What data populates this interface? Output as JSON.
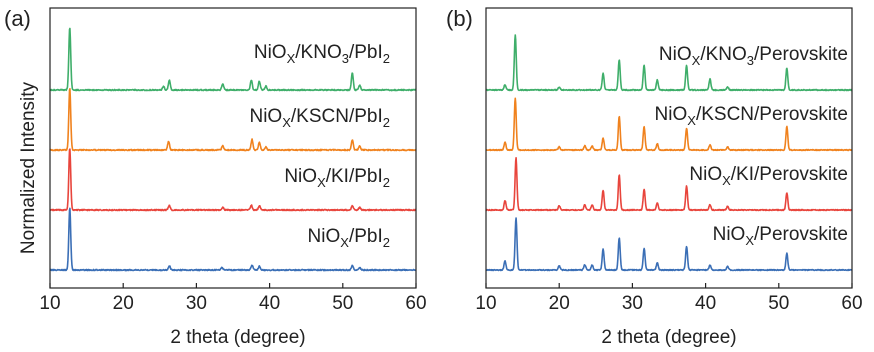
{
  "chart_data": [
    {
      "panel_label": "(a)",
      "type": "line",
      "xlabel": "2 theta (degree)",
      "ylabel": "Normalized Intensity",
      "xlim": [
        10,
        60
      ],
      "xticks": [
        "10",
        "20",
        "30",
        "40",
        "50",
        "60"
      ],
      "yticks": "none",
      "grid": false,
      "series": [
        {
          "label_parts": [
            "NiO",
            "X",
            "/PbI",
            "2"
          ],
          "color": "#3b6fb6",
          "peaks": [
            [
              12.7,
              1.0
            ],
            [
              26.3,
              0.07
            ],
            [
              33.5,
              0.04
            ],
            [
              37.6,
              0.08
            ],
            [
              38.6,
              0.06
            ],
            [
              51.3,
              0.07
            ],
            [
              52.3,
              0.04
            ]
          ]
        },
        {
          "label_parts": [
            "NiO",
            "X",
            "/KI/PbI",
            "2"
          ],
          "color": "#e8453c",
          "peaks": [
            [
              12.7,
              1.0
            ],
            [
              26.3,
              0.07
            ],
            [
              33.6,
              0.04
            ],
            [
              37.5,
              0.08
            ],
            [
              38.6,
              0.07
            ],
            [
              51.3,
              0.07
            ],
            [
              52.3,
              0.04
            ]
          ]
        },
        {
          "label_parts": [
            "NiO",
            "X",
            "/KSCN/PbI",
            "2"
          ],
          "color": "#f0821e",
          "peaks": [
            [
              12.7,
              1.0
            ],
            [
              26.2,
              0.14
            ],
            [
              33.6,
              0.07
            ],
            [
              37.6,
              0.17
            ],
            [
              38.6,
              0.12
            ],
            [
              39.5,
              0.05
            ],
            [
              51.3,
              0.16
            ],
            [
              52.3,
              0.06
            ]
          ]
        },
        {
          "label_parts": [
            "NiO",
            "X",
            "/KNO",
            "3",
            "/PbI",
            "2"
          ],
          "color": "#3fae6a",
          "peaks": [
            [
              12.7,
              1.0
            ],
            [
              25.5,
              0.06
            ],
            [
              26.3,
              0.16
            ],
            [
              33.6,
              0.1
            ],
            [
              37.5,
              0.16
            ],
            [
              38.6,
              0.14
            ],
            [
              39.5,
              0.06
            ],
            [
              51.3,
              0.28
            ],
            [
              52.3,
              0.08
            ]
          ]
        }
      ]
    },
    {
      "panel_label": "(b)",
      "type": "line",
      "xlabel": "2 theta (degree)",
      "ylabel": "",
      "xlim": [
        10,
        60
      ],
      "xticks": [
        "10",
        "20",
        "30",
        "40",
        "50",
        "60"
      ],
      "yticks": "none",
      "grid": false,
      "series": [
        {
          "label_parts": [
            "NiO",
            "X",
            "/Perovskite"
          ],
          "color": "#3b6fb6",
          "peaks": [
            [
              12.6,
              0.17
            ],
            [
              14.1,
              1.0
            ],
            [
              20.0,
              0.08
            ],
            [
              23.5,
              0.1
            ],
            [
              24.5,
              0.1
            ],
            [
              26.0,
              0.4
            ],
            [
              28.2,
              0.62
            ],
            [
              31.6,
              0.42
            ],
            [
              33.4,
              0.14
            ],
            [
              37.4,
              0.45
            ],
            [
              40.6,
              0.09
            ],
            [
              43.0,
              0.07
            ],
            [
              51.1,
              0.32
            ]
          ]
        },
        {
          "label_parts": [
            "NiO",
            "X",
            "/KI/Perovskite"
          ],
          "color": "#e8453c",
          "peaks": [
            [
              12.6,
              0.18
            ],
            [
              14.1,
              1.0
            ],
            [
              20.0,
              0.08
            ],
            [
              23.5,
              0.1
            ],
            [
              24.5,
              0.1
            ],
            [
              26.0,
              0.38
            ],
            [
              28.2,
              0.68
            ],
            [
              31.6,
              0.4
            ],
            [
              33.4,
              0.14
            ],
            [
              37.4,
              0.46
            ],
            [
              40.6,
              0.1
            ],
            [
              43.0,
              0.07
            ],
            [
              51.1,
              0.33
            ]
          ]
        },
        {
          "label_parts": [
            "NiO",
            "X",
            "/KSCN/Perovskite"
          ],
          "color": "#f0821e",
          "peaks": [
            [
              12.6,
              0.15
            ],
            [
              14.0,
              1.0
            ],
            [
              20.0,
              0.06
            ],
            [
              23.5,
              0.08
            ],
            [
              24.5,
              0.08
            ],
            [
              26.0,
              0.23
            ],
            [
              28.2,
              0.65
            ],
            [
              31.6,
              0.45
            ],
            [
              33.4,
              0.12
            ],
            [
              37.4,
              0.42
            ],
            [
              40.6,
              0.1
            ],
            [
              43.0,
              0.06
            ],
            [
              51.1,
              0.45
            ]
          ]
        },
        {
          "label_parts": [
            "NiO",
            "X",
            "/KNO",
            "3",
            "/Perovskite"
          ],
          "color": "#3fae6a",
          "peaks": [
            [
              12.6,
              0.1
            ],
            [
              14.0,
              1.0
            ],
            [
              20.0,
              0.05
            ],
            [
              26.0,
              0.3
            ],
            [
              28.2,
              0.55
            ],
            [
              31.6,
              0.45
            ],
            [
              33.4,
              0.18
            ],
            [
              37.4,
              0.45
            ],
            [
              40.6,
              0.2
            ],
            [
              43.0,
              0.06
            ],
            [
              51.1,
              0.4
            ]
          ]
        }
      ]
    }
  ]
}
